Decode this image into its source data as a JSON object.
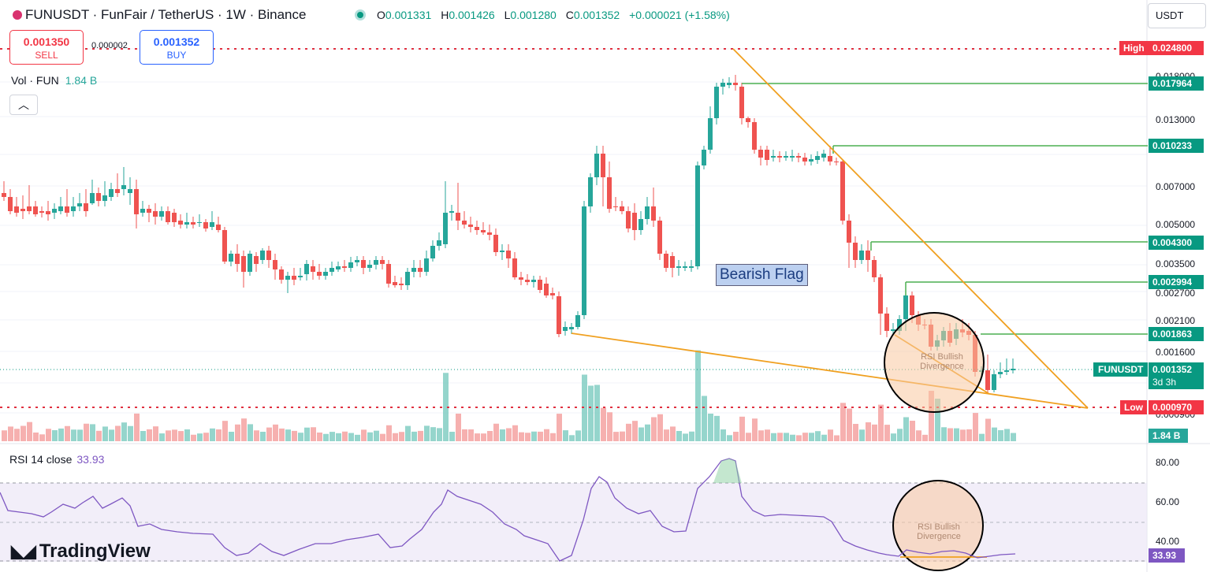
{
  "header": {
    "title": "FUNUSDT · FunFair / TetherUS · 1W · Binance",
    "ohlc": [
      {
        "k": "O",
        "v": "0.001331"
      },
      {
        "k": "H",
        "v": "0.001426"
      },
      {
        "k": "L",
        "v": "0.001280"
      },
      {
        "k": "C",
        "v": "0.001352"
      },
      {
        "k": "",
        "v": "+0.000021 (+1.58%)"
      }
    ]
  },
  "trade": {
    "sell_price": "0.001350",
    "sell_label": "SELL",
    "buy_price": "0.001352",
    "buy_label": "BUY",
    "spread": "0.000002"
  },
  "volume": {
    "label": "Vol · FUN",
    "value": "1.84 B",
    "axis_tag": "1.84 B"
  },
  "currency": "USDT",
  "price_axis": [
    "0.018000",
    "0.013000",
    "0.007000",
    "0.005000",
    "0.003500",
    "0.002700",
    "0.002100",
    "0.001600",
    "0.000900"
  ],
  "price_levels": {
    "high_label": "High",
    "high_value": "0.024800",
    "low_label": "Low",
    "low_value": "0.000970",
    "resistances": [
      "0.017964",
      "0.010233",
      "0.004300",
      "0.002994",
      "0.001863"
    ]
  },
  "last_price": {
    "symbol": "FUNUSDT",
    "value": "0.001352",
    "countdown": "3d 3h"
  },
  "annotations": {
    "bearish_flag": "Bearish Flag",
    "rsi_div_line1": "RSI Bullish",
    "rsi_div_line2": "Divergence"
  },
  "rsi": {
    "legend": "RSI 14 close",
    "value": "33.93",
    "axis": [
      "80.00",
      "60.00",
      "40.00"
    ]
  },
  "branding": "TradingView",
  "colors": {
    "up": "#26a69a",
    "down": "#ef5350",
    "rsi_line": "#7e57c2",
    "trend": "#f0a020",
    "level": "#4caf50"
  }
}
